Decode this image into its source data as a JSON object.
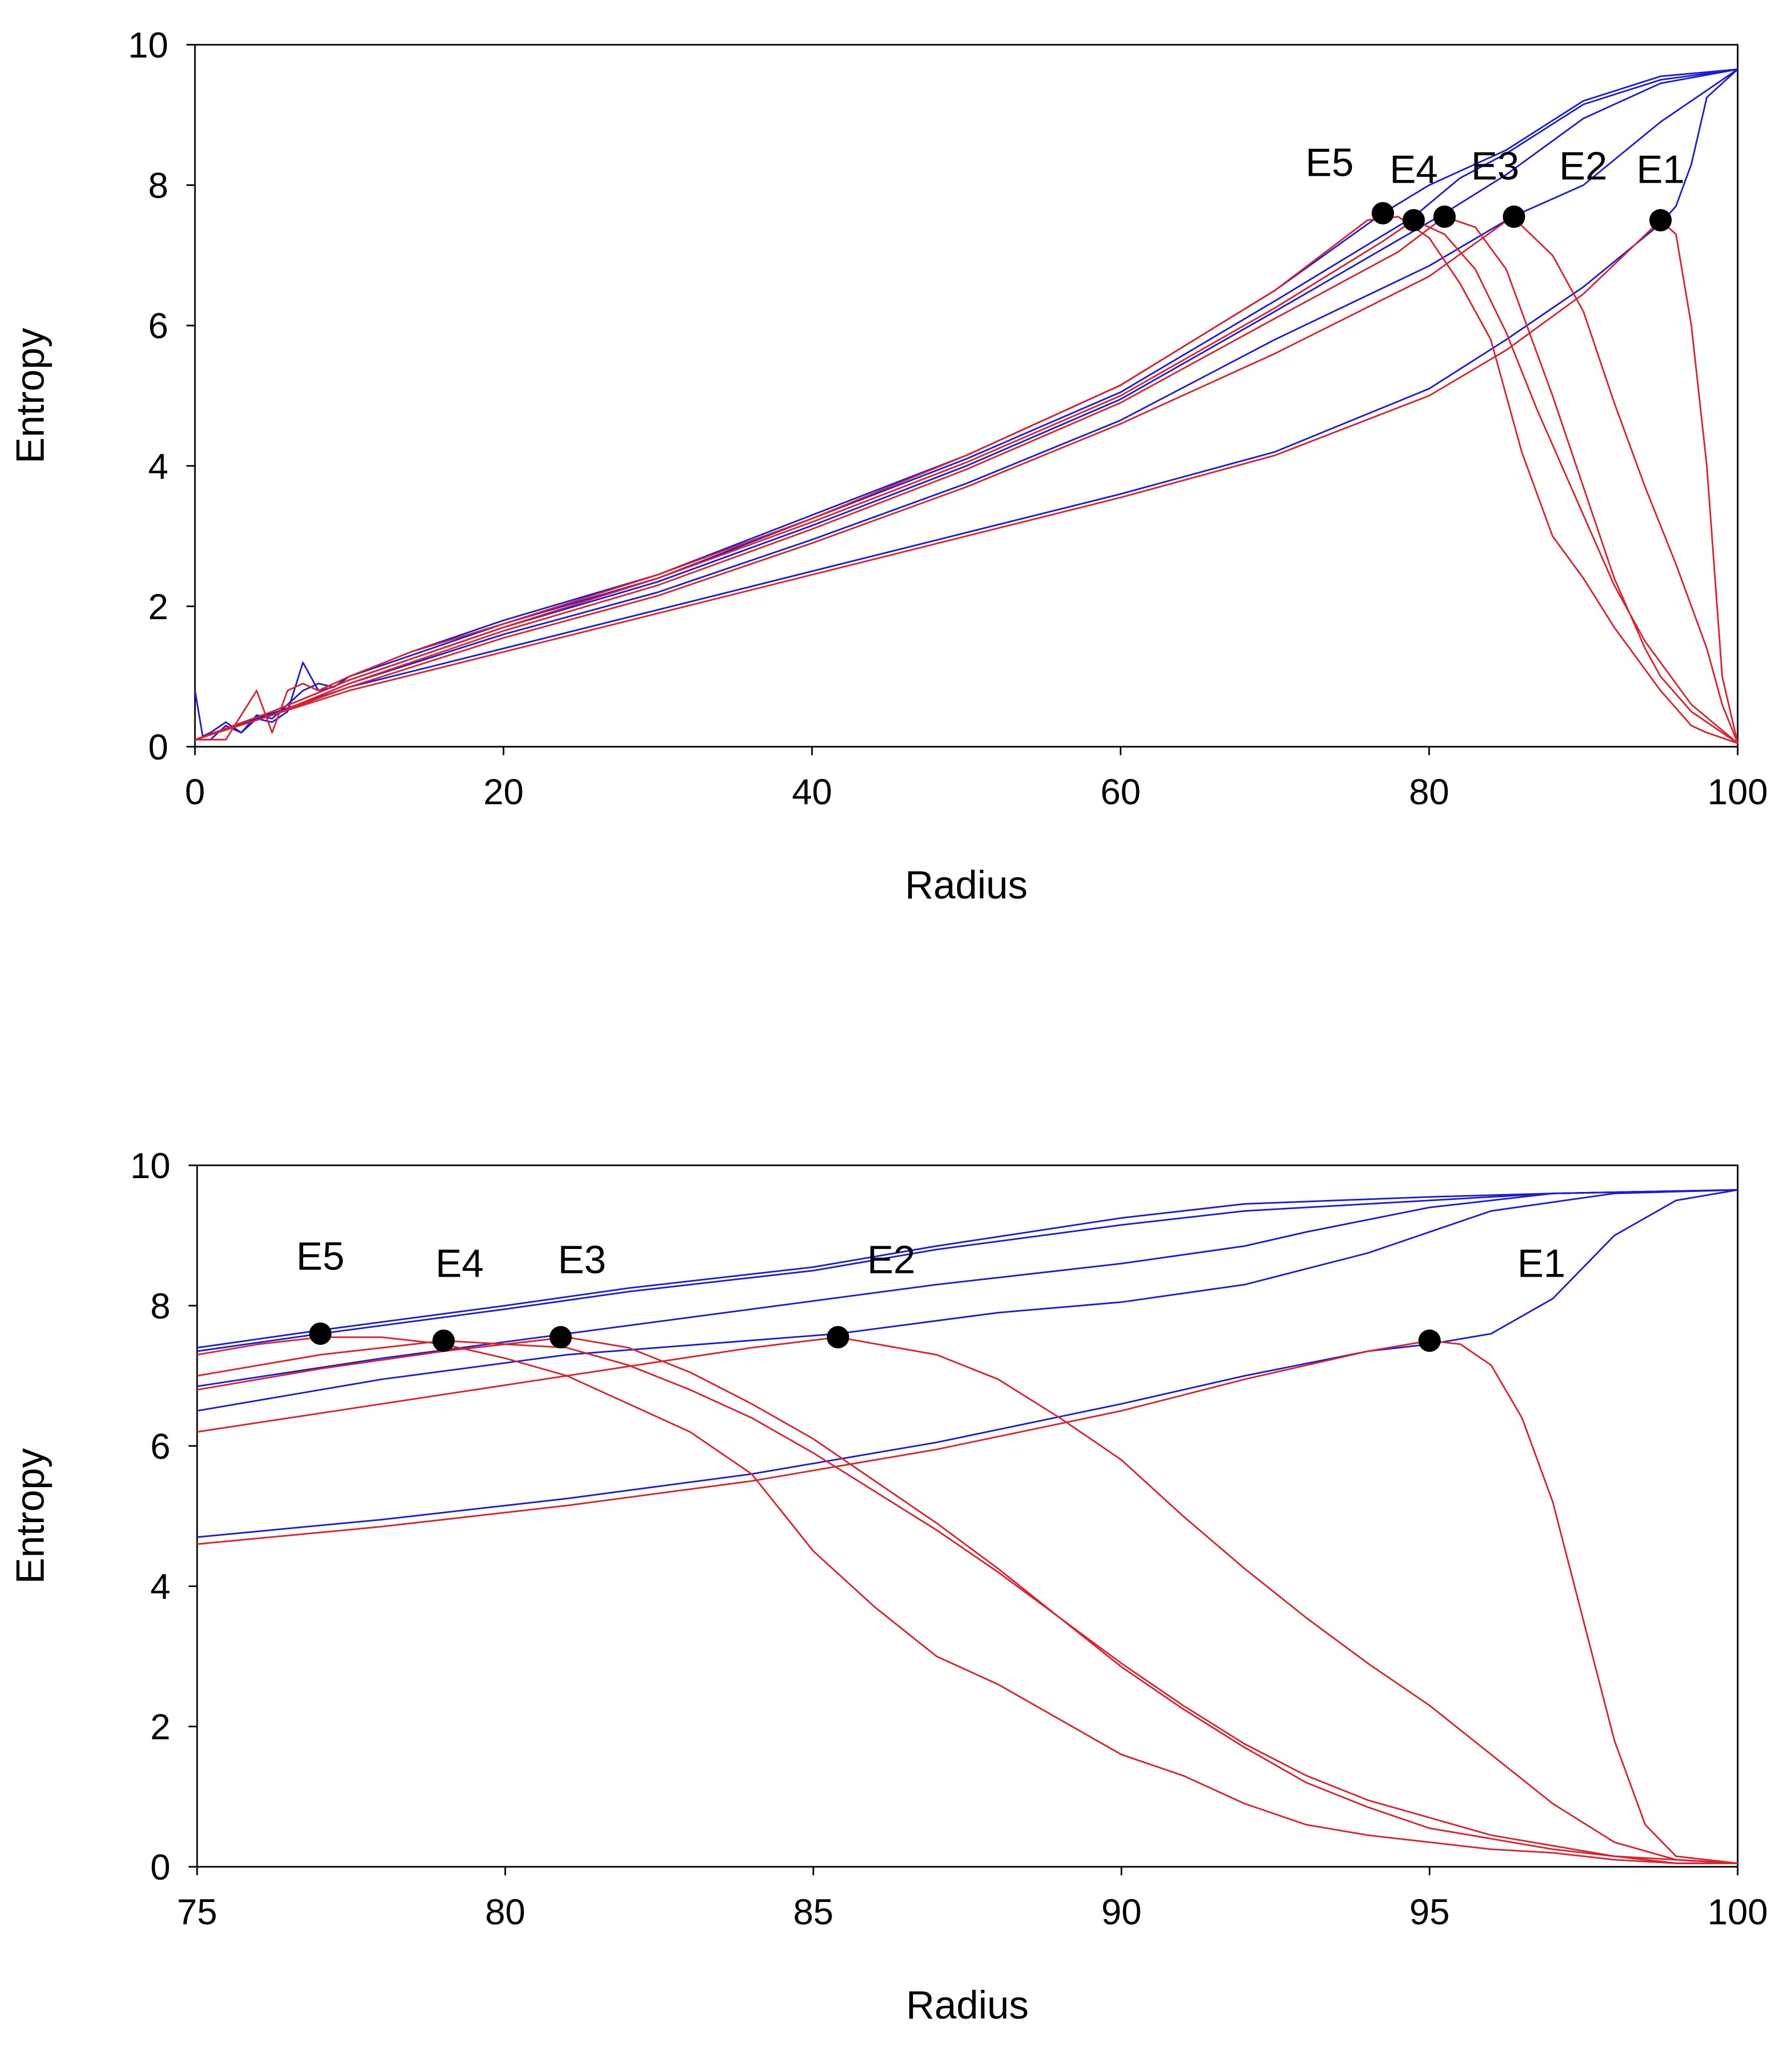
{
  "chart_data": [
    {
      "type": "line",
      "xlabel": "Radius",
      "ylabel": "Entropy",
      "xlim": [
        0,
        100
      ],
      "ylim": [
        0,
        10
      ],
      "xticks": [
        0,
        20,
        40,
        60,
        80,
        100
      ],
      "yticks": [
        0,
        2,
        4,
        6,
        8,
        10
      ],
      "grid": false,
      "colors": {
        "blue": "#1a1adc",
        "red": "#e0202a",
        "marker": "#000000"
      },
      "series": [
        {
          "color": "blue",
          "x": [
            0,
            0.5,
            1,
            2,
            3,
            4,
            5,
            6,
            7,
            8,
            9,
            10,
            14,
            20,
            30,
            40,
            50,
            60,
            70,
            77,
            80,
            85,
            90,
            95,
            100
          ],
          "y": [
            0.8,
            0.15,
            0.2,
            0.35,
            0.2,
            0.45,
            0.4,
            0.6,
            0.8,
            0.9,
            0.85,
            1.0,
            1.35,
            1.8,
            2.45,
            3.3,
            4.15,
            5.15,
            6.5,
            7.6,
            8.0,
            8.5,
            9.2,
            9.55,
            9.65
          ]
        },
        {
          "color": "blue",
          "x": [
            0,
            1,
            2,
            3,
            4,
            5,
            6,
            7,
            8,
            9,
            10,
            14,
            20,
            30,
            40,
            50,
            60,
            70,
            79,
            82,
            85,
            90,
            95,
            100
          ],
          "y": [
            0.1,
            0.1,
            0.3,
            0.2,
            0.4,
            0.35,
            0.5,
            1.2,
            0.8,
            0.85,
            1.0,
            1.3,
            1.75,
            2.4,
            3.25,
            4.1,
            5.05,
            6.35,
            7.55,
            8.1,
            8.45,
            9.15,
            9.5,
            9.65
          ]
        },
        {
          "color": "blue",
          "x": [
            0,
            5,
            10,
            20,
            30,
            40,
            50,
            60,
            70,
            81,
            85,
            90,
            95,
            100
          ],
          "y": [
            0.1,
            0.5,
            0.95,
            1.7,
            2.35,
            3.15,
            4.0,
            4.95,
            6.2,
            7.6,
            8.15,
            8.95,
            9.45,
            9.65
          ]
        },
        {
          "color": "blue",
          "x": [
            0,
            5,
            10,
            20,
            30,
            40,
            50,
            60,
            70,
            80,
            85.4,
            90,
            95,
            100
          ],
          "y": [
            0.1,
            0.45,
            0.9,
            1.6,
            2.2,
            2.95,
            3.75,
            4.65,
            5.8,
            6.85,
            7.55,
            8.0,
            8.9,
            9.65
          ]
        },
        {
          "color": "blue",
          "x": [
            0,
            10,
            20,
            30,
            40,
            50,
            60,
            70,
            80,
            85,
            90,
            95,
            96,
            97,
            98,
            100
          ],
          "y": [
            0.1,
            0.85,
            1.4,
            1.95,
            2.5,
            3.05,
            3.6,
            4.2,
            5.1,
            5.8,
            6.55,
            7.45,
            7.7,
            8.3,
            9.25,
            9.65
          ]
        },
        {
          "color": "red",
          "x": [
            0,
            2,
            4,
            5,
            6,
            7,
            8,
            10,
            14,
            20,
            30,
            40,
            50,
            60,
            70,
            76,
            78,
            80,
            82,
            84,
            85,
            86,
            87,
            88,
            90,
            92,
            95,
            97,
            98,
            100
          ],
          "y": [
            0.1,
            0.1,
            0.8,
            0.2,
            0.8,
            0.9,
            0.8,
            1.0,
            1.35,
            1.75,
            2.45,
            3.25,
            4.15,
            5.15,
            6.5,
            7.5,
            7.55,
            7.25,
            6.6,
            5.8,
            5.0,
            4.2,
            3.6,
            3.0,
            2.4,
            1.7,
            0.8,
            0.3,
            0.2,
            0.05
          ]
        },
        {
          "color": "red",
          "x": [
            0,
            5,
            10,
            20,
            30,
            40,
            50,
            60,
            70,
            77,
            79,
            81,
            83,
            85,
            87,
            88,
            90,
            92,
            94,
            95,
            97,
            100
          ],
          "y": [
            0.1,
            0.5,
            0.95,
            1.7,
            2.4,
            3.2,
            4.05,
            5.0,
            6.25,
            7.2,
            7.5,
            7.3,
            6.8,
            5.9,
            4.8,
            4.3,
            3.3,
            2.3,
            1.5,
            1.2,
            0.6,
            0.05
          ]
        },
        {
          "color": "red",
          "x": [
            0,
            5,
            10,
            20,
            30,
            40,
            50,
            60,
            70,
            78,
            81,
            83,
            85,
            87,
            88,
            90,
            92,
            94,
            95,
            97,
            100
          ],
          "y": [
            0.1,
            0.45,
            0.9,
            1.65,
            2.3,
            3.1,
            3.95,
            4.9,
            6.1,
            7.05,
            7.55,
            7.4,
            6.8,
            5.6,
            5.0,
            3.7,
            2.4,
            1.4,
            1.0,
            0.5,
            0.05
          ]
        },
        {
          "color": "red",
          "x": [
            0,
            5,
            10,
            20,
            30,
            40,
            50,
            60,
            70,
            80,
            85.4,
            88,
            90,
            92,
            94,
            96,
            98,
            99,
            100
          ],
          "y": [
            0.1,
            0.45,
            0.85,
            1.55,
            2.15,
            2.9,
            3.7,
            4.6,
            5.6,
            6.7,
            7.55,
            7.0,
            6.2,
            4.9,
            3.7,
            2.6,
            1.4,
            0.6,
            0.05
          ]
        },
        {
          "color": "red",
          "x": [
            0,
            10,
            20,
            30,
            40,
            50,
            60,
            70,
            80,
            85,
            90,
            95,
            96,
            97,
            98,
            99,
            100
          ],
          "y": [
            0.1,
            0.8,
            1.35,
            1.9,
            2.45,
            3.0,
            3.55,
            4.15,
            5.0,
            5.65,
            6.45,
            7.5,
            7.3,
            6.0,
            4.0,
            1.0,
            0.05
          ]
        }
      ],
      "markers": [
        {
          "label": "E5",
          "x": 77.0,
          "y": 7.6
        },
        {
          "label": "E4",
          "x": 79.0,
          "y": 7.5
        },
        {
          "label": "E3",
          "x": 81.0,
          "y": 7.55
        },
        {
          "label": "E2",
          "x": 85.5,
          "y": 7.55
        },
        {
          "label": "E1",
          "x": 95.0,
          "y": 7.5
        }
      ]
    },
    {
      "type": "line",
      "xlabel": "Radius",
      "ylabel": "Entropy",
      "xlim": [
        75,
        100
      ],
      "ylim": [
        0,
        10
      ],
      "xticks": [
        75,
        80,
        85,
        90,
        95,
        100
      ],
      "yticks": [
        0,
        2,
        4,
        6,
        8,
        10
      ],
      "grid": false,
      "colors": {
        "blue": "#1a1adc",
        "red": "#e0202a",
        "marker": "#000000"
      },
      "series": [
        {
          "color": "blue",
          "x": [
            75,
            77,
            80,
            82,
            85,
            87,
            90,
            92,
            95,
            97,
            100
          ],
          "y": [
            7.4,
            7.65,
            8.0,
            8.25,
            8.55,
            8.85,
            9.25,
            9.45,
            9.55,
            9.6,
            9.65
          ]
        },
        {
          "color": "blue",
          "x": [
            75,
            77,
            80,
            82,
            85,
            87,
            90,
            92,
            95,
            97,
            100
          ],
          "y": [
            7.35,
            7.6,
            7.95,
            8.2,
            8.5,
            8.8,
            9.15,
            9.35,
            9.5,
            9.6,
            9.65
          ]
        },
        {
          "color": "blue",
          "x": [
            75,
            78,
            81,
            84,
            87,
            90,
            92,
            93,
            95,
            97,
            100
          ],
          "y": [
            6.85,
            7.25,
            7.6,
            7.95,
            8.3,
            8.6,
            8.85,
            9.05,
            9.4,
            9.6,
            9.65
          ]
        },
        {
          "color": "blue",
          "x": [
            75,
            78,
            81,
            85.4,
            88,
            90,
            92,
            94,
            96,
            98,
            100
          ],
          "y": [
            6.5,
            6.95,
            7.3,
            7.6,
            7.9,
            8.05,
            8.3,
            8.75,
            9.35,
            9.6,
            9.65
          ]
        },
        {
          "color": "blue",
          "x": [
            75,
            78,
            81,
            84,
            87,
            90,
            92,
            94,
            95,
            96,
            97,
            98,
            99,
            100
          ],
          "y": [
            4.7,
            4.95,
            5.25,
            5.6,
            6.05,
            6.6,
            7.0,
            7.35,
            7.45,
            7.6,
            8.1,
            9.0,
            9.5,
            9.65
          ]
        },
        {
          "color": "red",
          "x": [
            75,
            76,
            77,
            78,
            79,
            80,
            81,
            82,
            83,
            84,
            85,
            86,
            87,
            88,
            89,
            90,
            91,
            92,
            93,
            94,
            95,
            96,
            97,
            98,
            99,
            100
          ],
          "y": [
            7.3,
            7.45,
            7.55,
            7.55,
            7.45,
            7.25,
            7.0,
            6.6,
            6.2,
            5.6,
            4.5,
            3.7,
            3.0,
            2.6,
            2.1,
            1.6,
            1.3,
            0.9,
            0.6,
            0.45,
            0.35,
            0.25,
            0.2,
            0.1,
            0.05,
            0.05
          ]
        },
        {
          "color": "red",
          "x": [
            75,
            77,
            79,
            81,
            82,
            83,
            84,
            85,
            86,
            87,
            88,
            89,
            90,
            91,
            92,
            93,
            94,
            95,
            96,
            97,
            98,
            99,
            100
          ],
          "y": [
            7.0,
            7.3,
            7.5,
            7.4,
            7.15,
            6.8,
            6.4,
            5.9,
            5.35,
            4.8,
            4.2,
            3.55,
            2.9,
            2.3,
            1.75,
            1.3,
            0.95,
            0.7,
            0.45,
            0.3,
            0.15,
            0.1,
            0.05
          ]
        },
        {
          "color": "red",
          "x": [
            75,
            77,
            79,
            81,
            82,
            83,
            84,
            85,
            86,
            87,
            88,
            89,
            90,
            91,
            92,
            93,
            94,
            95,
            96,
            97,
            98,
            99,
            100
          ],
          "y": [
            6.8,
            7.1,
            7.35,
            7.55,
            7.4,
            7.05,
            6.6,
            6.1,
            5.5,
            4.9,
            4.25,
            3.55,
            2.85,
            2.25,
            1.7,
            1.2,
            0.85,
            0.55,
            0.4,
            0.25,
            0.15,
            0.05,
            0.05
          ]
        },
        {
          "color": "red",
          "x": [
            75,
            78,
            81,
            84,
            85.4,
            87,
            88,
            89,
            90,
            91,
            92,
            93,
            94,
            95,
            96,
            97,
            98,
            99,
            100
          ],
          "y": [
            6.2,
            6.6,
            7.0,
            7.4,
            7.55,
            7.3,
            6.95,
            6.4,
            5.8,
            5.0,
            4.25,
            3.55,
            2.9,
            2.3,
            1.6,
            0.9,
            0.35,
            0.1,
            0.05
          ]
        },
        {
          "color": "red",
          "x": [
            75,
            78,
            81,
            84,
            87,
            90,
            92,
            94,
            95,
            95.5,
            96,
            96.5,
            97,
            97.5,
            98,
            98.5,
            99,
            100
          ],
          "y": [
            4.6,
            4.85,
            5.15,
            5.5,
            5.95,
            6.5,
            6.95,
            7.35,
            7.5,
            7.45,
            7.15,
            6.4,
            5.2,
            3.5,
            1.8,
            0.6,
            0.15,
            0.05
          ]
        }
      ],
      "markers": [
        {
          "label": "E5",
          "x": 77.0,
          "y": 7.6
        },
        {
          "label": "E4",
          "x": 79.0,
          "y": 7.5
        },
        {
          "label": "E3",
          "x": 80.9,
          "y": 7.55
        },
        {
          "label": "E2",
          "x": 85.4,
          "y": 7.55
        },
        {
          "label": "E1",
          "x": 95.0,
          "y": 7.5
        }
      ]
    }
  ]
}
